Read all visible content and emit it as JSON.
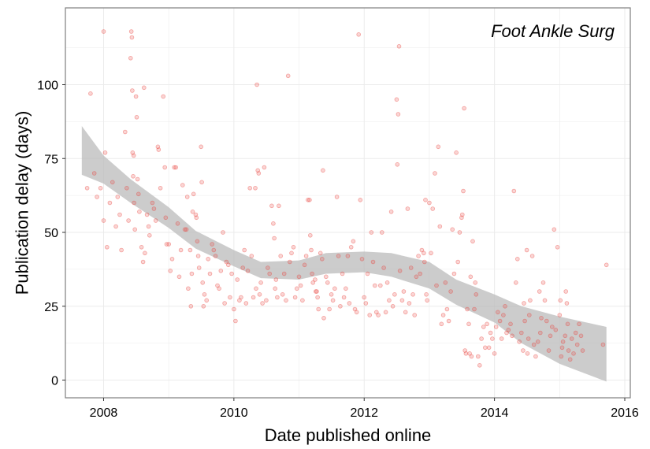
{
  "chart_data": {
    "type": "scatter",
    "annotation": "Foot Ankle Surg",
    "xlabel": "Date published online",
    "ylabel": "Publication delay (days)",
    "x_ticks": [
      "2008",
      "2010",
      "2012",
      "2014",
      "2016"
    ],
    "y_ticks": [
      "0",
      "25",
      "50",
      "75",
      "100"
    ],
    "xlim": [
      "2007-06-01",
      "2016-02-01"
    ],
    "ylim": [
      -6,
      126
    ],
    "grid": true,
    "colors": {
      "points": "#e8413a",
      "smooth_band": "#b8b8b8",
      "grid": "#ebebeb",
      "border": "#7f7f7f"
    },
    "smooth": {
      "x": [
        "2007-09-01",
        "2008-01-01",
        "2008-06-01",
        "2009-01-01",
        "2009-06-01",
        "2010-01-01",
        "2010-06-01",
        "2011-01-01",
        "2011-06-01",
        "2012-01-01",
        "2012-06-01",
        "2013-01-01",
        "2013-06-01",
        "2014-01-01",
        "2014-06-01",
        "2015-01-01",
        "2015-09-20"
      ],
      "lower": [
        69.5,
        66.5,
        60,
        51.5,
        44.5,
        38.5,
        34.5,
        34,
        36,
        36.5,
        35,
        31,
        25.5,
        19.5,
        12.5,
        5.5,
        -0.5
      ],
      "upper": [
        86,
        76,
        68,
        58.5,
        50.5,
        44,
        40,
        40.5,
        43,
        43.5,
        43,
        40,
        34,
        29,
        25,
        21.5,
        18
      ]
    },
    "points": [
      [
        "2007-10-01",
        65
      ],
      [
        "2007-10-20",
        97
      ],
      [
        "2007-11-10",
        70
      ],
      [
        "2007-11-25",
        62
      ],
      [
        "2007-12-15",
        65
      ],
      [
        "2008-01-01",
        118
      ],
      [
        "2008-01-01",
        54
      ],
      [
        "2008-01-10",
        77
      ],
      [
        "2008-01-20",
        45
      ],
      [
        "2008-02-05",
        60
      ],
      [
        "2008-02-20",
        67
      ],
      [
        "2008-03-10",
        52
      ],
      [
        "2008-03-20",
        62
      ],
      [
        "2008-04-01",
        56
      ],
      [
        "2008-04-10",
        44
      ],
      [
        "2008-05-01",
        84
      ],
      [
        "2008-05-10",
        65
      ],
      [
        "2008-05-20",
        54
      ],
      [
        "2008-06-01",
        109
      ],
      [
        "2008-06-05",
        118
      ],
      [
        "2008-06-08",
        116
      ],
      [
        "2008-06-10",
        98
      ],
      [
        "2008-06-12",
        77
      ],
      [
        "2008-06-15",
        69
      ],
      [
        "2008-06-18",
        76
      ],
      [
        "2008-06-20",
        60
      ],
      [
        "2008-06-25",
        51
      ],
      [
        "2008-07-01",
        96
      ],
      [
        "2008-07-05",
        89
      ],
      [
        "2008-07-10",
        68
      ],
      [
        "2008-07-15",
        63
      ],
      [
        "2008-07-20",
        57
      ],
      [
        "2008-08-01",
        45
      ],
      [
        "2008-08-10",
        40
      ],
      [
        "2008-08-15",
        99
      ],
      [
        "2008-08-20",
        43
      ],
      [
        "2008-09-01",
        56
      ],
      [
        "2008-09-10",
        52
      ],
      [
        "2008-09-15",
        49
      ],
      [
        "2008-10-01",
        60
      ],
      [
        "2008-10-10",
        58
      ],
      [
        "2008-10-20",
        54
      ],
      [
        "2008-11-01",
        79
      ],
      [
        "2008-11-05",
        78
      ],
      [
        "2008-11-15",
        65
      ],
      [
        "2008-12-01",
        96
      ],
      [
        "2008-12-10",
        72
      ],
      [
        "2008-12-15",
        55
      ],
      [
        "2008-12-20",
        46
      ],
      [
        "2009-01-01",
        46
      ],
      [
        "2009-01-10",
        37
      ],
      [
        "2009-01-20",
        41
      ],
      [
        "2009-02-01",
        72
      ],
      [
        "2009-02-10",
        72
      ],
      [
        "2009-02-20",
        53
      ],
      [
        "2009-03-01",
        35
      ],
      [
        "2009-03-10",
        44
      ],
      [
        "2009-03-20",
        66
      ],
      [
        "2009-04-01",
        51
      ],
      [
        "2009-04-10",
        51
      ],
      [
        "2009-04-15",
        62
      ],
      [
        "2009-04-20",
        31
      ],
      [
        "2009-05-01",
        44
      ],
      [
        "2009-05-05",
        25
      ],
      [
        "2009-05-10",
        36
      ],
      [
        "2009-05-15",
        57
      ],
      [
        "2009-05-20",
        63
      ],
      [
        "2009-06-01",
        56
      ],
      [
        "2009-06-05",
        55
      ],
      [
        "2009-06-10",
        47
      ],
      [
        "2009-06-15",
        42
      ],
      [
        "2009-06-20",
        38
      ],
      [
        "2009-07-01",
        79
      ],
      [
        "2009-07-05",
        67
      ],
      [
        "2009-07-10",
        33
      ],
      [
        "2009-07-15",
        25
      ],
      [
        "2009-07-20",
        29
      ],
      [
        "2009-08-01",
        27
      ],
      [
        "2009-08-10",
        41
      ],
      [
        "2009-08-20",
        36
      ],
      [
        "2009-09-01",
        46
      ],
      [
        "2009-09-10",
        44
      ],
      [
        "2009-09-20",
        42
      ],
      [
        "2009-10-01",
        32
      ],
      [
        "2009-10-10",
        31
      ],
      [
        "2009-10-20",
        37
      ],
      [
        "2009-11-01",
        50
      ],
      [
        "2009-11-10",
        26
      ],
      [
        "2009-11-20",
        40
      ],
      [
        "2009-12-01",
        39
      ],
      [
        "2009-12-10",
        28
      ],
      [
        "2009-12-20",
        36
      ],
      [
        "2010-01-01",
        24
      ],
      [
        "2010-01-10",
        20
      ],
      [
        "2010-01-20",
        34
      ],
      [
        "2010-02-01",
        27
      ],
      [
        "2010-02-10",
        28
      ],
      [
        "2010-02-20",
        38
      ],
      [
        "2010-03-01",
        44
      ],
      [
        "2010-03-10",
        26
      ],
      [
        "2010-03-20",
        37
      ],
      [
        "2010-04-01",
        65
      ],
      [
        "2010-04-10",
        42
      ],
      [
        "2010-04-20",
        28
      ],
      [
        "2010-05-01",
        65
      ],
      [
        "2010-05-05",
        31
      ],
      [
        "2010-05-10",
        100
      ],
      [
        "2010-05-15",
        71
      ],
      [
        "2010-05-20",
        70
      ],
      [
        "2010-05-25",
        29
      ],
      [
        "2010-06-01",
        33
      ],
      [
        "2010-06-10",
        26
      ],
      [
        "2010-06-20",
        72
      ],
      [
        "2010-07-01",
        27
      ],
      [
        "2010-07-10",
        38
      ],
      [
        "2010-07-20",
        36
      ],
      [
        "2010-08-01",
        59
      ],
      [
        "2010-08-10",
        53
      ],
      [
        "2010-08-15",
        48
      ],
      [
        "2010-08-20",
        31
      ],
      [
        "2010-08-25",
        34
      ],
      [
        "2010-09-01",
        28
      ],
      [
        "2010-09-10",
        59
      ],
      [
        "2010-09-20",
        42
      ],
      [
        "2010-10-01",
        29
      ],
      [
        "2010-10-10",
        36
      ],
      [
        "2010-10-20",
        27
      ],
      [
        "2010-11-01",
        103
      ],
      [
        "2010-11-10",
        40
      ],
      [
        "2010-11-20",
        43
      ],
      [
        "2010-12-01",
        45
      ],
      [
        "2010-12-10",
        28
      ],
      [
        "2010-12-20",
        31
      ],
      [
        "2011-01-01",
        35
      ],
      [
        "2011-01-10",
        32
      ],
      [
        "2011-01-20",
        27
      ],
      [
        "2011-02-01",
        39
      ],
      [
        "2011-02-10",
        42
      ],
      [
        "2011-02-20",
        61
      ],
      [
        "2011-03-01",
        61
      ],
      [
        "2011-03-05",
        49
      ],
      [
        "2011-03-10",
        44
      ],
      [
        "2011-03-15",
        36
      ],
      [
        "2011-03-20",
        33
      ],
      [
        "2011-04-01",
        34
      ],
      [
        "2011-04-05",
        30
      ],
      [
        "2011-04-10",
        30
      ],
      [
        "2011-04-15",
        28
      ],
      [
        "2011-04-20",
        24
      ],
      [
        "2011-05-01",
        43
      ],
      [
        "2011-05-10",
        41
      ],
      [
        "2011-05-15",
        71
      ],
      [
        "2011-05-20",
        21
      ],
      [
        "2011-06-01",
        35
      ],
      [
        "2011-06-10",
        33
      ],
      [
        "2011-06-20",
        24
      ],
      [
        "2011-07-01",
        29
      ],
      [
        "2011-07-10",
        27
      ],
      [
        "2011-07-20",
        31
      ],
      [
        "2011-08-01",
        62
      ],
      [
        "2011-08-10",
        42
      ],
      [
        "2011-08-20",
        25
      ],
      [
        "2011-09-01",
        36
      ],
      [
        "2011-09-10",
        28
      ],
      [
        "2011-09-20",
        31
      ],
      [
        "2011-10-01",
        42
      ],
      [
        "2011-10-10",
        26
      ],
      [
        "2011-10-20",
        45
      ],
      [
        "2011-11-01",
        47
      ],
      [
        "2011-11-10",
        24
      ],
      [
        "2011-11-20",
        23
      ],
      [
        "2011-12-01",
        117
      ],
      [
        "2011-12-10",
        61
      ],
      [
        "2011-12-20",
        41
      ],
      [
        "2012-01-01",
        28
      ],
      [
        "2012-01-10",
        26
      ],
      [
        "2012-01-20",
        36
      ],
      [
        "2012-02-01",
        22
      ],
      [
        "2012-02-10",
        50
      ],
      [
        "2012-02-20",
        40
      ],
      [
        "2012-03-01",
        32
      ],
      [
        "2012-03-10",
        23
      ],
      [
        "2012-03-20",
        22
      ],
      [
        "2012-04-01",
        32
      ],
      [
        "2012-04-10",
        50
      ],
      [
        "2012-04-20",
        38
      ],
      [
        "2012-05-01",
        23
      ],
      [
        "2012-05-10",
        33
      ],
      [
        "2012-05-20",
        27
      ],
      [
        "2012-06-01",
        57
      ],
      [
        "2012-06-10",
        25
      ],
      [
        "2012-06-20",
        29
      ],
      [
        "2012-07-01",
        95
      ],
      [
        "2012-07-05",
        73
      ],
      [
        "2012-07-10",
        90
      ],
      [
        "2012-07-15",
        113
      ],
      [
        "2012-07-20",
        37
      ],
      [
        "2012-08-01",
        27
      ],
      [
        "2012-08-10",
        30
      ],
      [
        "2012-08-20",
        23
      ],
      [
        "2012-09-01",
        58
      ],
      [
        "2012-09-10",
        26
      ],
      [
        "2012-09-20",
        38
      ],
      [
        "2012-10-01",
        29
      ],
      [
        "2012-10-10",
        22
      ],
      [
        "2012-10-20",
        35
      ],
      [
        "2012-11-01",
        42
      ],
      [
        "2012-11-10",
        36
      ],
      [
        "2012-11-20",
        44
      ],
      [
        "2012-12-01",
        43
      ],
      [
        "2012-12-05",
        40
      ],
      [
        "2012-12-10",
        61
      ],
      [
        "2012-12-15",
        29
      ],
      [
        "2012-12-20",
        27
      ],
      [
        "2013-01-01",
        60
      ],
      [
        "2013-01-10",
        43
      ],
      [
        "2013-01-20",
        58
      ],
      [
        "2013-02-01",
        70
      ],
      [
        "2013-02-10",
        32
      ],
      [
        "2013-02-20",
        79
      ],
      [
        "2013-03-01",
        52
      ],
      [
        "2013-03-10",
        19
      ],
      [
        "2013-03-20",
        22
      ],
      [
        "2013-04-01",
        33
      ],
      [
        "2013-04-10",
        24
      ],
      [
        "2013-04-20",
        20
      ],
      [
        "2013-05-01",
        30
      ],
      [
        "2013-05-10",
        51
      ],
      [
        "2013-05-20",
        36
      ],
      [
        "2013-06-01",
        77
      ],
      [
        "2013-06-10",
        40
      ],
      [
        "2013-06-20",
        50
      ],
      [
        "2013-07-01",
        55
      ],
      [
        "2013-07-05",
        56
      ],
      [
        "2013-07-10",
        64
      ],
      [
        "2013-07-15",
        92
      ],
      [
        "2013-07-20",
        10
      ],
      [
        "2013-07-25",
        9
      ],
      [
        "2013-08-01",
        24
      ],
      [
        "2013-08-10",
        19
      ],
      [
        "2013-08-15",
        9
      ],
      [
        "2013-08-20",
        35
      ],
      [
        "2013-08-25",
        8
      ],
      [
        "2013-09-01",
        47
      ],
      [
        "2013-09-10",
        24
      ],
      [
        "2013-09-15",
        33
      ],
      [
        "2013-09-20",
        29
      ],
      [
        "2013-10-01",
        8
      ],
      [
        "2013-10-10",
        5
      ],
      [
        "2013-10-20",
        14
      ],
      [
        "2013-11-01",
        18
      ],
      [
        "2013-11-10",
        11
      ],
      [
        "2013-11-20",
        19
      ],
      [
        "2013-12-01",
        11
      ],
      [
        "2013-12-10",
        16
      ],
      [
        "2013-12-20",
        14
      ],
      [
        "2014-01-01",
        9
      ],
      [
        "2014-01-10",
        18
      ],
      [
        "2014-01-20",
        23
      ],
      [
        "2014-02-01",
        20
      ],
      [
        "2014-02-10",
        14
      ],
      [
        "2014-02-20",
        22
      ],
      [
        "2014-03-01",
        25
      ],
      [
        "2014-03-10",
        16
      ],
      [
        "2014-03-20",
        17
      ],
      [
        "2014-04-01",
        19
      ],
      [
        "2014-04-10",
        15
      ],
      [
        "2014-04-20",
        64
      ],
      [
        "2014-05-01",
        33
      ],
      [
        "2014-05-10",
        41
      ],
      [
        "2014-05-20",
        13
      ],
      [
        "2014-06-01",
        16
      ],
      [
        "2014-06-10",
        10
      ],
      [
        "2014-06-15",
        26
      ],
      [
        "2014-06-20",
        20
      ],
      [
        "2014-07-01",
        44
      ],
      [
        "2014-07-05",
        9
      ],
      [
        "2014-07-10",
        14
      ],
      [
        "2014-07-15",
        22
      ],
      [
        "2014-07-20",
        27
      ],
      [
        "2014-08-01",
        42
      ],
      [
        "2014-08-10",
        12
      ],
      [
        "2014-08-20",
        8
      ],
      [
        "2014-09-01",
        13
      ],
      [
        "2014-09-10",
        30
      ],
      [
        "2014-09-15",
        16
      ],
      [
        "2014-09-20",
        21
      ],
      [
        "2014-10-01",
        33
      ],
      [
        "2014-10-10",
        27
      ],
      [
        "2014-10-20",
        20
      ],
      [
        "2014-11-01",
        10
      ],
      [
        "2014-11-10",
        15
      ],
      [
        "2014-11-20",
        18
      ],
      [
        "2014-12-01",
        51
      ],
      [
        "2014-12-10",
        17
      ],
      [
        "2014-12-20",
        45
      ],
      [
        "2015-01-01",
        22
      ],
      [
        "2015-01-05",
        27
      ],
      [
        "2015-01-10",
        8
      ],
      [
        "2015-01-15",
        11
      ],
      [
        "2015-01-20",
        13
      ],
      [
        "2015-02-01",
        15
      ],
      [
        "2015-02-05",
        30
      ],
      [
        "2015-02-10",
        26
      ],
      [
        "2015-02-15",
        19
      ],
      [
        "2015-02-20",
        10
      ],
      [
        "2015-03-01",
        7
      ],
      [
        "2015-03-10",
        14
      ],
      [
        "2015-03-20",
        9
      ],
      [
        "2015-04-01",
        16
      ],
      [
        "2015-04-10",
        12
      ],
      [
        "2015-04-20",
        19
      ],
      [
        "2015-05-01",
        15
      ],
      [
        "2015-05-10",
        10
      ],
      [
        "2015-09-01",
        12
      ],
      [
        "2015-09-20",
        39
      ]
    ]
  }
}
